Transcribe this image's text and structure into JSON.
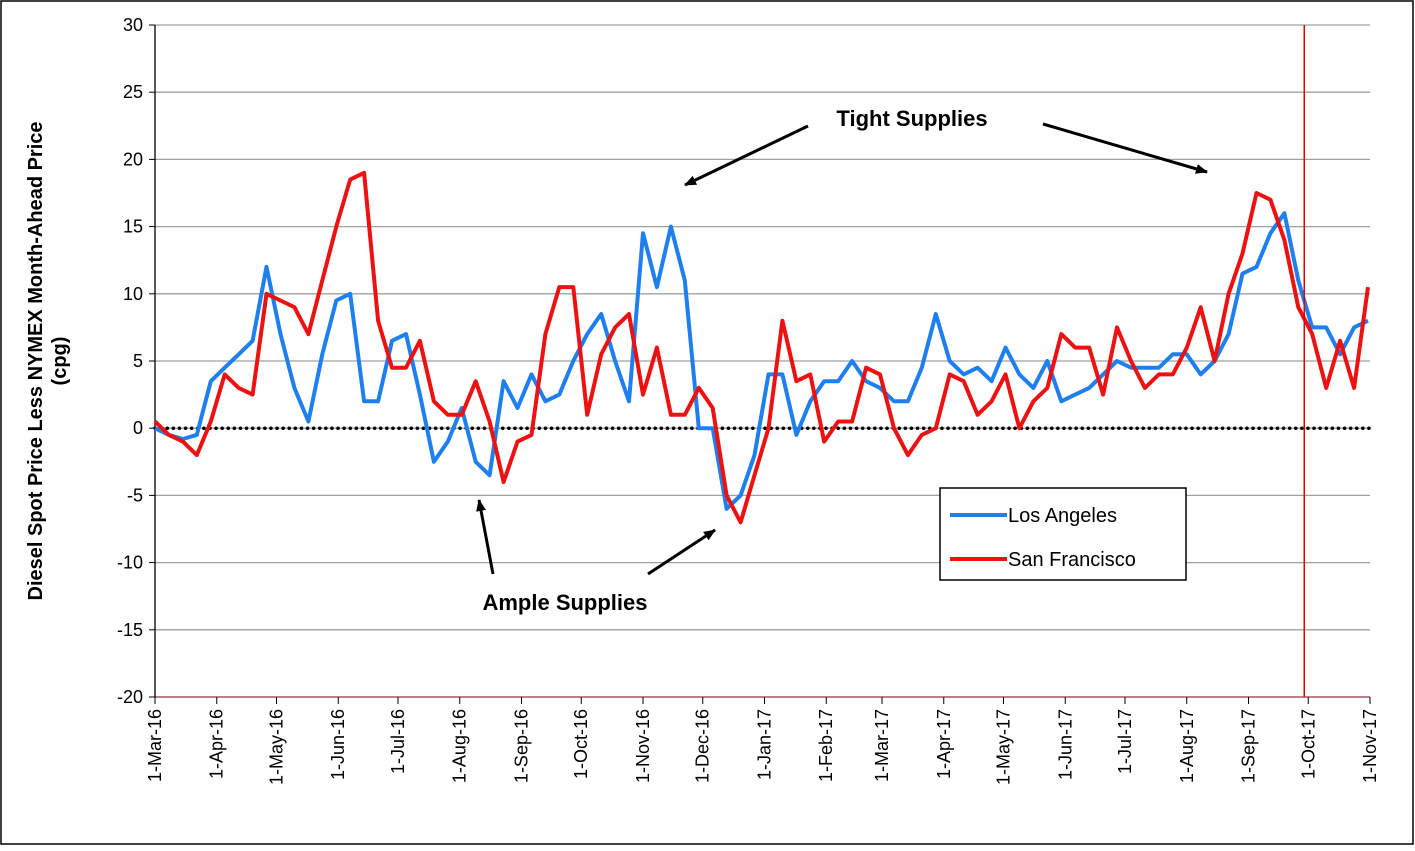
{
  "chart_data": {
    "type": "line",
    "ylabel": [
      "Diesel Spot Price Less NYMEX Month-Ahead Price",
      "(cpg)"
    ],
    "x": [
      "2016-03-01",
      "2016-03-08",
      "2016-03-15",
      "2016-03-22",
      "2016-03-29",
      "2016-04-05",
      "2016-04-12",
      "2016-04-19",
      "2016-04-26",
      "2016-05-03",
      "2016-05-10",
      "2016-05-17",
      "2016-05-24",
      "2016-05-31",
      "2016-06-07",
      "2016-06-14",
      "2016-06-21",
      "2016-06-28",
      "2016-07-05",
      "2016-07-12",
      "2016-07-19",
      "2016-07-26",
      "2016-08-02",
      "2016-08-09",
      "2016-08-16",
      "2016-08-23",
      "2016-08-30",
      "2016-09-06",
      "2016-09-13",
      "2016-09-20",
      "2016-09-27",
      "2016-10-04",
      "2016-10-11",
      "2016-10-18",
      "2016-10-25",
      "2016-11-01",
      "2016-11-08",
      "2016-11-15",
      "2016-11-22",
      "2016-11-29",
      "2016-12-06",
      "2016-12-13",
      "2016-12-20",
      "2016-12-27",
      "2017-01-03",
      "2017-01-10",
      "2017-01-17",
      "2017-01-24",
      "2017-01-31",
      "2017-02-07",
      "2017-02-14",
      "2017-02-21",
      "2017-02-28",
      "2017-03-07",
      "2017-03-14",
      "2017-03-21",
      "2017-03-28",
      "2017-04-04",
      "2017-04-11",
      "2017-04-18",
      "2017-04-25",
      "2017-05-02",
      "2017-05-09",
      "2017-05-16",
      "2017-05-23",
      "2017-05-30",
      "2017-06-06",
      "2017-06-13",
      "2017-06-20",
      "2017-06-27",
      "2017-07-04",
      "2017-07-11",
      "2017-07-18",
      "2017-07-25",
      "2017-08-01",
      "2017-08-08",
      "2017-08-15",
      "2017-08-22",
      "2017-08-29",
      "2017-09-05",
      "2017-09-12",
      "2017-09-19",
      "2017-09-26",
      "2017-10-03",
      "2017-10-10",
      "2017-10-17",
      "2017-10-24",
      "2017-10-31"
    ],
    "series": [
      {
        "name": "Los Angeles",
        "color": "#1e7ff0",
        "values": [
          0,
          -0.5,
          -0.8,
          -0.5,
          3.5,
          4.5,
          5.5,
          6.5,
          12,
          7,
          3,
          0.5,
          5.5,
          9.5,
          10,
          2,
          2,
          6.5,
          7,
          2.5,
          -2.5,
          -1,
          1.5,
          -2.5,
          -3.5,
          3.5,
          1.5,
          4,
          2,
          2.5,
          5,
          7,
          8.5,
          5,
          2,
          14.5,
          10.5,
          15,
          11,
          0,
          0,
          -6,
          -5,
          -2,
          4,
          4,
          -0.5,
          2,
          3.5,
          3.5,
          5,
          3.5,
          3,
          2,
          2,
          4.5,
          8.5,
          5,
          4,
          4.5,
          3.5,
          6,
          4,
          3,
          5,
          2,
          2.5,
          3,
          4,
          5,
          4.5,
          4.5,
          4.5,
          5.5,
          5.5,
          4,
          5,
          7,
          11.5,
          12,
          14.5,
          16,
          11,
          7.5,
          7.5,
          5.5,
          7.5,
          8
        ]
      },
      {
        "name": "San Francisco",
        "color": "#ee1111",
        "values": [
          0.5,
          -0.5,
          -1,
          -2,
          0.5,
          4,
          3,
          2.5,
          10,
          9.5,
          9,
          7,
          11,
          15,
          18.5,
          19,
          8,
          4.5,
          4.5,
          6.5,
          2,
          1,
          1,
          3.5,
          0.5,
          -4,
          -1,
          -0.5,
          7,
          10.5,
          10.5,
          1,
          5.5,
          7.5,
          8.5,
          2.5,
          6,
          1,
          1,
          3,
          1.5,
          -5,
          -7,
          -3.5,
          0,
          8,
          3.5,
          4,
          -1,
          0.5,
          0.5,
          4.5,
          4,
          0,
          -2,
          -0.5,
          0,
          4,
          3.5,
          1,
          2,
          4,
          0,
          2,
          3,
          7,
          6,
          6,
          2.5,
          7.5,
          5,
          3,
          4,
          4,
          6,
          9,
          5,
          10,
          13,
          17.5,
          17,
          14,
          9,
          7,
          3,
          6.5,
          3,
          10.5
        ]
      }
    ],
    "xlim": [
      "2016-03-01",
      "2017-11-01"
    ],
    "xticks": [
      {
        "value": "2016-03-01",
        "label": "1-Mar-16"
      },
      {
        "value": "2016-04-01",
        "label": "1-Apr-16"
      },
      {
        "value": "2016-05-01",
        "label": "1-May-16"
      },
      {
        "value": "2016-06-01",
        "label": "1-Jun-16"
      },
      {
        "value": "2016-07-01",
        "label": "1-Jul-16"
      },
      {
        "value": "2016-08-01",
        "label": "1-Aug-16"
      },
      {
        "value": "2016-09-01",
        "label": "1-Sep-16"
      },
      {
        "value": "2016-10-01",
        "label": "1-Oct-16"
      },
      {
        "value": "2016-11-01",
        "label": "1-Nov-16"
      },
      {
        "value": "2016-12-01",
        "label": "1-Dec-16"
      },
      {
        "value": "2017-01-01",
        "label": "1-Jan-17"
      },
      {
        "value": "2017-02-01",
        "label": "1-Feb-17"
      },
      {
        "value": "2017-03-01",
        "label": "1-Mar-17"
      },
      {
        "value": "2017-04-01",
        "label": "1-Apr-17"
      },
      {
        "value": "2017-05-01",
        "label": "1-May-17"
      },
      {
        "value": "2017-06-01",
        "label": "1-Jun-17"
      },
      {
        "value": "2017-07-01",
        "label": "1-Jul-17"
      },
      {
        "value": "2017-08-01",
        "label": "1-Aug-17"
      },
      {
        "value": "2017-09-01",
        "label": "1-Sep-17"
      },
      {
        "value": "2017-10-01",
        "label": "1-Oct-17"
      },
      {
        "value": "2017-11-01",
        "label": "1-Nov-17"
      }
    ],
    "ylim": [
      -20,
      30
    ],
    "yticks": [
      -20,
      -15,
      -10,
      -5,
      0,
      5,
      10,
      15,
      20,
      25,
      30
    ],
    "grid": true,
    "hline": 0,
    "vline": {
      "x": "2017-09-29",
      "color": "#e00000"
    },
    "annotations": [
      {
        "text": "Tight Supplies"
      },
      {
        "text": "Ample Supplies"
      }
    ]
  }
}
